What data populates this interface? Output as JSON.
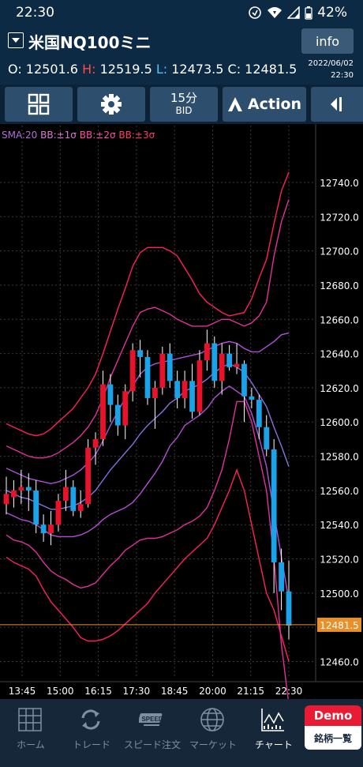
{
  "status": {
    "time": "22:30",
    "battery": "42%"
  },
  "header": {
    "symbol": "米国NQ100ミニ",
    "info_label": "info",
    "ohlc": {
      "o_key": "O:",
      "o": "12501.6",
      "h_key": "H:",
      "h": "12519.5",
      "l_key": "L:",
      "l": "12473.5",
      "c_key": "C:",
      "c": "12481.5"
    },
    "date": "2022/06/02",
    "time": "22:30"
  },
  "toolbar": {
    "grid_icon": "grid-icon",
    "settings_icon": "gear-icon",
    "timeframe": "15分",
    "price_type": "BID",
    "action_label": "Action",
    "collapse_icon": "panel-collapse-icon"
  },
  "legend": {
    "sma": "SMA:20",
    "bb1": "BB:±1σ",
    "bb2": "BB:±2σ",
    "bb3": "BB:±3σ"
  },
  "current_price": "12481.5",
  "chart_data": {
    "type": "candlestick",
    "x_ticks": [
      "13:45",
      "15:00",
      "16:15",
      "17:30",
      "18:45",
      "20:00",
      "21:15",
      "22:30"
    ],
    "y_ticks": [
      12460.0,
      12480.0,
      12500.0,
      12520.0,
      12540.0,
      12560.0,
      12580.0,
      12600.0,
      12620.0,
      12640.0,
      12660.0,
      12680.0,
      12700.0,
      12720.0,
      12740.0
    ],
    "y_tick_labels": [
      "12460.0",
      "12480.0",
      "12500.0",
      "12520.0",
      "12540.0",
      "12560.0",
      "12580.0",
      "12600.0",
      "12620.0",
      "12640.0",
      "12660.0",
      "12680.0",
      "12700.0",
      "12720.0",
      "12740.0"
    ],
    "ylim": [
      12451,
      12764
    ],
    "colors": {
      "up": "#e8132b",
      "down": "#1aa3e8",
      "sma": "#8a6fe0",
      "bb1": "#b24fd6",
      "bb2": "#e2309c",
      "bb3": "#ff1f5a",
      "price_line": "#e8912a"
    },
    "candles": [
      {
        "o": 12552,
        "h": 12568,
        "l": 12546,
        "c": 12558
      },
      {
        "o": 12556,
        "h": 12566,
        "l": 12550,
        "c": 12560
      },
      {
        "o": 12560,
        "h": 12572,
        "l": 12552,
        "c": 12562
      },
      {
        "o": 12562,
        "h": 12570,
        "l": 12548,
        "c": 12560
      },
      {
        "o": 12560,
        "h": 12566,
        "l": 12535,
        "c": 12540
      },
      {
        "o": 12540,
        "h": 12546,
        "l": 12530,
        "c": 12535
      },
      {
        "o": 12535,
        "h": 12548,
        "l": 12528,
        "c": 12540
      },
      {
        "o": 12540,
        "h": 12558,
        "l": 12536,
        "c": 12554
      },
      {
        "o": 12554,
        "h": 12572,
        "l": 12548,
        "c": 12562
      },
      {
        "o": 12562,
        "h": 12566,
        "l": 12545,
        "c": 12548
      },
      {
        "o": 12548,
        "h": 12560,
        "l": 12544,
        "c": 12552
      },
      {
        "o": 12552,
        "h": 12590,
        "l": 12550,
        "c": 12585
      },
      {
        "o": 12585,
        "h": 12594,
        "l": 12575,
        "c": 12590
      },
      {
        "o": 12590,
        "h": 12630,
        "l": 12586,
        "c": 12622
      },
      {
        "o": 12622,
        "h": 12628,
        "l": 12600,
        "c": 12610
      },
      {
        "o": 12610,
        "h": 12616,
        "l": 12592,
        "c": 12598
      },
      {
        "o": 12598,
        "h": 12622,
        "l": 12590,
        "c": 12618
      },
      {
        "o": 12618,
        "h": 12646,
        "l": 12612,
        "c": 12642
      },
      {
        "o": 12642,
        "h": 12648,
        "l": 12626,
        "c": 12638
      },
      {
        "o": 12638,
        "h": 12642,
        "l": 12610,
        "c": 12614
      },
      {
        "o": 12614,
        "h": 12624,
        "l": 12596,
        "c": 12620
      },
      {
        "o": 12620,
        "h": 12644,
        "l": 12616,
        "c": 12640
      },
      {
        "o": 12640,
        "h": 12646,
        "l": 12620,
        "c": 12624
      },
      {
        "o": 12624,
        "h": 12630,
        "l": 12608,
        "c": 12614
      },
      {
        "o": 12614,
        "h": 12630,
        "l": 12608,
        "c": 12624
      },
      {
        "o": 12624,
        "h": 12634,
        "l": 12602,
        "c": 12606
      },
      {
        "o": 12606,
        "h": 12642,
        "l": 12604,
        "c": 12636
      },
      {
        "o": 12636,
        "h": 12654,
        "l": 12630,
        "c": 12646
      },
      {
        "o": 12646,
        "h": 12650,
        "l": 12620,
        "c": 12624
      },
      {
        "o": 12624,
        "h": 12646,
        "l": 12616,
        "c": 12640
      },
      {
        "o": 12640,
        "h": 12645,
        "l": 12630,
        "c": 12632
      },
      {
        "o": 12632,
        "h": 12646,
        "l": 12628,
        "c": 12634
      },
      {
        "o": 12634,
        "h": 12636,
        "l": 12600,
        "c": 12615
      },
      {
        "o": 12615,
        "h": 12620,
        "l": 12608,
        "c": 12613
      },
      {
        "o": 12613,
        "h": 12616,
        "l": 12590,
        "c": 12597
      },
      {
        "o": 12597,
        "h": 12604,
        "l": 12580,
        "c": 12584
      },
      {
        "o": 12584,
        "h": 12590,
        "l": 12500,
        "c": 12518
      },
      {
        "o": 12518,
        "h": 12526,
        "l": 12490,
        "c": 12501
      },
      {
        "o": 12501,
        "h": 12519,
        "l": 12473,
        "c": 12481
      }
    ],
    "sma": [
      12560,
      12558,
      12556,
      12555,
      12553,
      12551,
      12549,
      12549,
      12550,
      12551,
      12553,
      12556,
      12560,
      12566,
      12572,
      12577,
      12582,
      12587,
      12593,
      12598,
      12602,
      12606,
      12611,
      12614,
      12618,
      12620,
      12622,
      12625,
      12629,
      12632,
      12634,
      12632,
      12629,
      12623,
      12616,
      12609,
      12597,
      12586,
      12574
    ],
    "bb1_upper": [
      12573,
      12571,
      12569,
      12567,
      12566,
      12565,
      12564,
      12565,
      12567,
      12569,
      12572,
      12576,
      12581,
      12589,
      12598,
      12606,
      12614,
      12621,
      12628,
      12632,
      12634,
      12635,
      12636,
      12637,
      12638,
      12639,
      12640,
      12642,
      12644,
      12646,
      12647,
      12646,
      12643,
      12641,
      12641,
      12644,
      12647,
      12651,
      12652
    ],
    "bb1_lower": [
      12547,
      12545,
      12543,
      12542,
      12540,
      12537,
      12534,
      12533,
      12533,
      12533,
      12534,
      12536,
      12539,
      12543,
      12546,
      12548,
      12550,
      12553,
      12558,
      12564,
      12570,
      12577,
      12586,
      12591,
      12598,
      12601,
      12604,
      12608,
      12614,
      12618,
      12621,
      12618,
      12615,
      12605,
      12591,
      12574,
      12547,
      12521,
      12496
    ],
    "bb2_upper": [
      12586,
      12584,
      12582,
      12580,
      12579,
      12579,
      12580,
      12582,
      12585,
      12588,
      12592,
      12597,
      12604,
      12614,
      12626,
      12636,
      12646,
      12656,
      12664,
      12666,
      12667,
      12665,
      12663,
      12660,
      12658,
      12656,
      12656,
      12656,
      12658,
      12660,
      12660,
      12658,
      12656,
      12658,
      12662,
      12670,
      12697,
      12717,
      12730
    ],
    "bb2_lower": [
      12534,
      12531,
      12530,
      12528,
      12524,
      12518,
      12513,
      12510,
      12508,
      12505,
      12503,
      12504,
      12506,
      12511,
      12516,
      12520,
      12525,
      12528,
      12531,
      12532,
      12532,
      12533,
      12535,
      12537,
      12540,
      12542,
      12545,
      12550,
      12560,
      12572,
      12590,
      12612,
      12612,
      12600,
      12580,
      12560,
      12520,
      12470,
      12435
    ],
    "bb3_upper": [
      12599,
      12597,
      12595,
      12593,
      12592,
      12593,
      12596,
      12600,
      12604,
      12608,
      12614,
      12620,
      12628,
      12640,
      12653,
      12666,
      12678,
      12691,
      12699,
      12702,
      12702,
      12702,
      12700,
      12697,
      12690,
      12683,
      12675,
      12670,
      12667,
      12664,
      12662,
      12663,
      12664,
      12672,
      12684,
      12695,
      12716,
      12735,
      12746
    ],
    "bb3_lower": [
      12521,
      12518,
      12516,
      12514,
      12510,
      12502,
      12495,
      12490,
      12485,
      12480,
      12474,
      12472,
      12472,
      12473,
      12475,
      12478,
      12482,
      12486,
      12490,
      12494,
      12500,
      12505,
      12510,
      12515,
      12520,
      12524,
      12528,
      12532,
      12540,
      12550,
      12560,
      12572,
      12560,
      12540,
      12520,
      12500,
      12490,
      12475,
      12460
    ]
  },
  "tabs": [
    {
      "label": "ホーム",
      "icon": "home-grid-icon"
    },
    {
      "label": "トレード",
      "icon": "trade-arrows-icon"
    },
    {
      "label": "スピード注文",
      "icon": "speed-icon"
    },
    {
      "label": "マーケット",
      "icon": "globe-icon"
    },
    {
      "label": "チャート",
      "icon": "chart-icon"
    }
  ],
  "demo": {
    "top": "Demo",
    "bottom": "銘柄一覧"
  }
}
